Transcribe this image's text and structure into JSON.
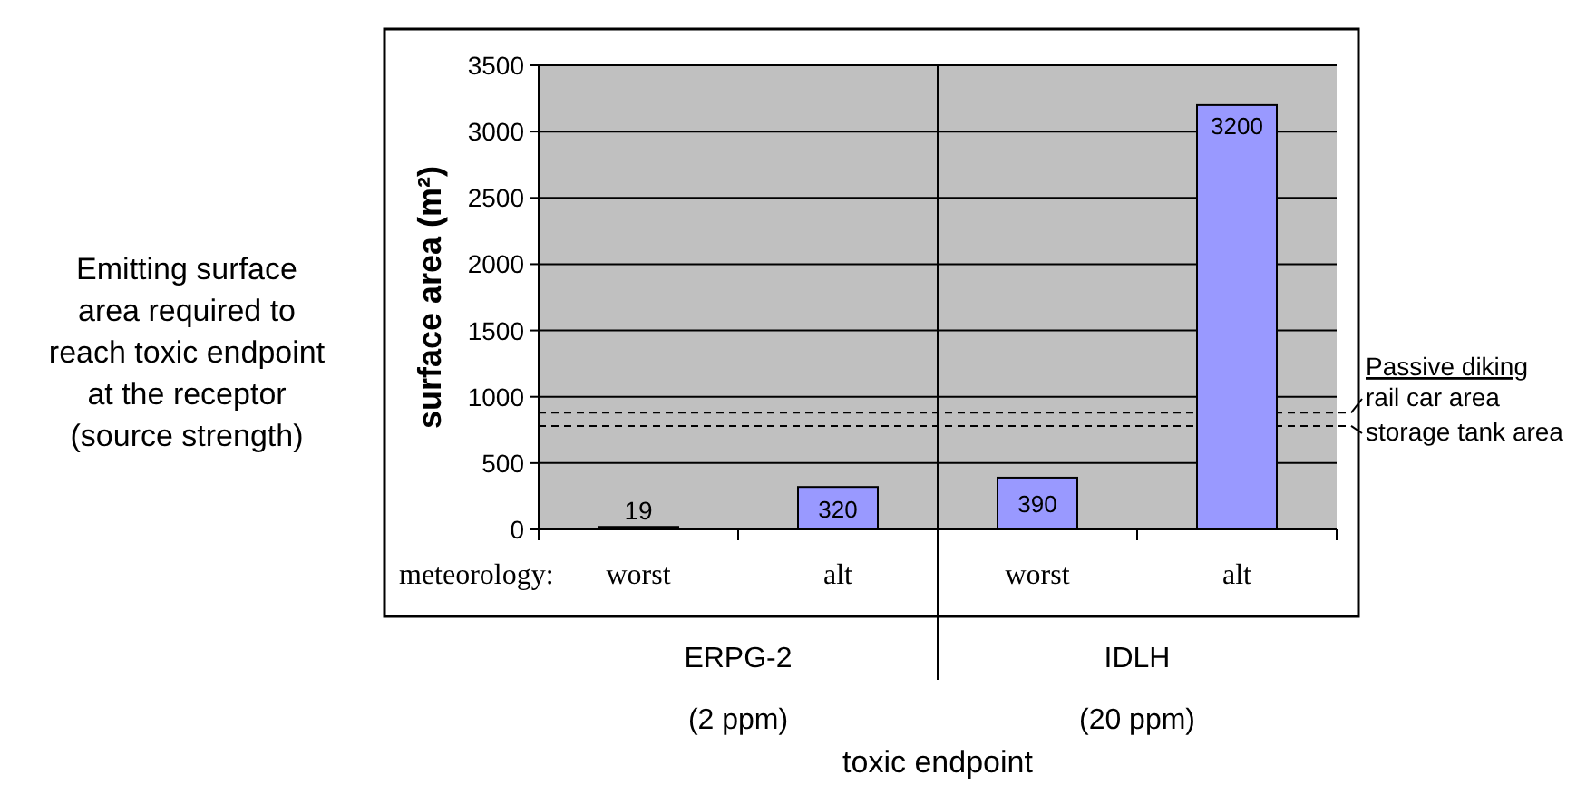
{
  "chart_data": {
    "type": "bar",
    "ylabel": "surface area (m²)",
    "categories": [
      "worst",
      "alt",
      "worst",
      "alt"
    ],
    "values": [
      19,
      320,
      390,
      3200
    ],
    "color": "#9999ff",
    "data_labels": true,
    "ylim": [
      0,
      3500
    ],
    "yticks": [
      0,
      500,
      1000,
      1500,
      2000,
      2500,
      3000,
      3500
    ],
    "grid": "y",
    "ref_lines": [
      {
        "axis": "y",
        "value": 880,
        "label": "rail car area",
        "line_style": "dashed"
      },
      {
        "axis": "y",
        "value": 780,
        "label": "storage tank area",
        "line_style": "dashed"
      }
    ],
    "annotations": [
      "meteorology:",
      "ERPG-2",
      "(2 ppm)",
      "IDLH",
      "(20 ppm)",
      "Emitting surface\narea required to\nreach toxic endpoint\nat the receptor\n(source strength)",
      "Passive diking",
      "toxic endpoint"
    ]
  }
}
